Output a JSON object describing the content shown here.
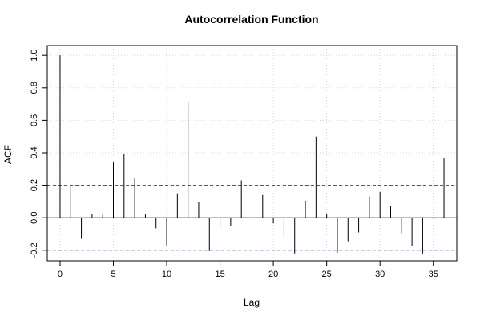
{
  "chart_data": {
    "type": "bar",
    "title": "Autocorrelation Function",
    "xlabel": "Lag",
    "ylabel": "ACF",
    "xlim": [
      -1.2,
      37.2
    ],
    "ylim": [
      -0.265,
      1.06
    ],
    "x_ticks": [
      0,
      5,
      10,
      15,
      20,
      25,
      30,
      35
    ],
    "x_tick_labels": [
      "0",
      "5",
      "10",
      "15",
      "20",
      "25",
      "30",
      "35"
    ],
    "y_ticks": [
      -0.2,
      0.0,
      0.2,
      0.4,
      0.6,
      0.8,
      1.0
    ],
    "y_tick_labels": [
      "-0.2",
      "0.0",
      "0.2",
      "0.4",
      "0.6",
      "0.8",
      "1.0"
    ],
    "grid": true,
    "confidence_bound": 0.2,
    "lags": [
      0,
      1,
      2,
      3,
      4,
      5,
      6,
      7,
      8,
      9,
      10,
      11,
      12,
      13,
      14,
      15,
      16,
      17,
      18,
      19,
      20,
      21,
      22,
      23,
      24,
      25,
      26,
      27,
      28,
      29,
      30,
      31,
      32,
      33,
      34,
      35,
      36
    ],
    "values": [
      1.0,
      0.19,
      -0.13,
      0.025,
      0.02,
      0.34,
      0.39,
      0.245,
      0.02,
      -0.065,
      -0.17,
      0.15,
      0.71,
      0.095,
      -0.205,
      -0.06,
      -0.05,
      0.23,
      0.28,
      0.14,
      -0.035,
      -0.115,
      -0.22,
      0.105,
      0.5,
      0.025,
      -0.215,
      -0.145,
      -0.09,
      0.13,
      0.16,
      0.075,
      -0.095,
      -0.175,
      -0.22,
      -0.005,
      0.365
    ],
    "colors": {
      "stem": "#000000",
      "confidence_line": "#3333cc",
      "grid": "#d3d3d3",
      "axis": "#000000"
    }
  }
}
